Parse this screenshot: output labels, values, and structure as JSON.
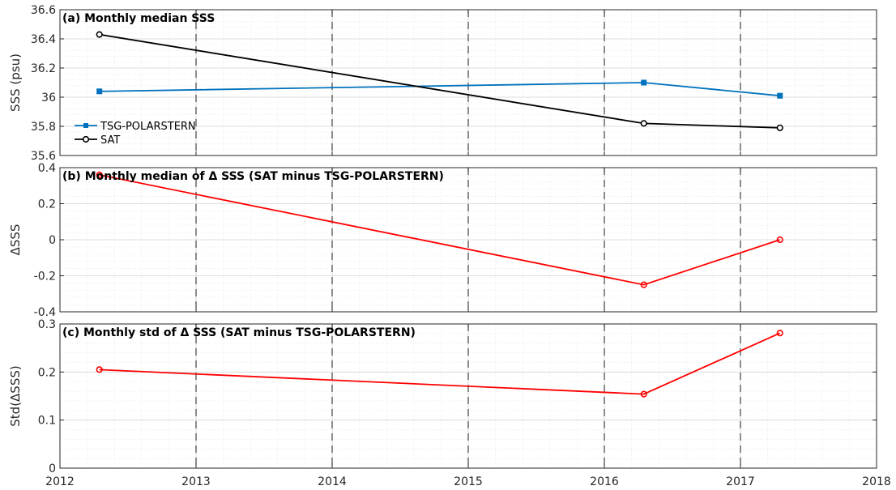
{
  "chart_data": [
    {
      "type": "line",
      "title": "(a) Monthly median SSS",
      "ylabel": "SSS (psu)",
      "xlim": [
        2012,
        2018
      ],
      "ylim": [
        35.6,
        36.6
      ],
      "xticks": [
        "2012",
        "2013",
        "2014",
        "2015",
        "2016",
        "2017",
        "2018"
      ],
      "yticks": [
        "35.6",
        "35.8",
        "36",
        "36.2",
        "36.4",
        "36.6"
      ],
      "grid": true,
      "legend": "left",
      "series": [
        {
          "name": "TSG-POLARSTERN",
          "color": "#0072BD",
          "marker": "square",
          "x": [
            2012.29,
            2016.29,
            2017.29
          ],
          "y": [
            36.04,
            36.1,
            36.01
          ]
        },
        {
          "name": "SAT",
          "color": "#000000",
          "marker": "circle",
          "x": [
            2012.29,
            2016.29,
            2017.29
          ],
          "y": [
            36.43,
            35.82,
            35.79
          ]
        }
      ]
    },
    {
      "type": "line",
      "title": "(b) Monthly median of Δ SSS (SAT minus TSG-POLARSTERN)",
      "ylabel": "ΔSSS",
      "xlim": [
        2012,
        2018
      ],
      "ylim": [
        -0.4,
        0.4
      ],
      "yticks": [
        "-0.4",
        "-0.2",
        "0",
        "0.2",
        "0.4"
      ],
      "grid": true,
      "series": [
        {
          "color": "#FF0000",
          "marker": "circle",
          "x": [
            2012.29,
            2016.29,
            2017.29
          ],
          "y": [
            0.36,
            -0.25,
            0.0
          ]
        }
      ]
    },
    {
      "type": "line",
      "title": "(c) Monthly std of Δ SSS (SAT minus TSG-POLARSTERN)",
      "ylabel": "Std(ΔSSS)",
      "xlim": [
        2012,
        2018
      ],
      "ylim": [
        0,
        0.3
      ],
      "yticks": [
        "0",
        "0.1",
        "0.2",
        "0.3"
      ],
      "grid": true,
      "series": [
        {
          "color": "#FF0000",
          "marker": "circle",
          "x": [
            2012.29,
            2016.29,
            2017.29
          ],
          "y": [
            0.205,
            0.154,
            0.281
          ]
        }
      ]
    }
  ],
  "vertical_dashed_lines_x": [
    2013,
    2014,
    2015,
    2016,
    2017
  ]
}
